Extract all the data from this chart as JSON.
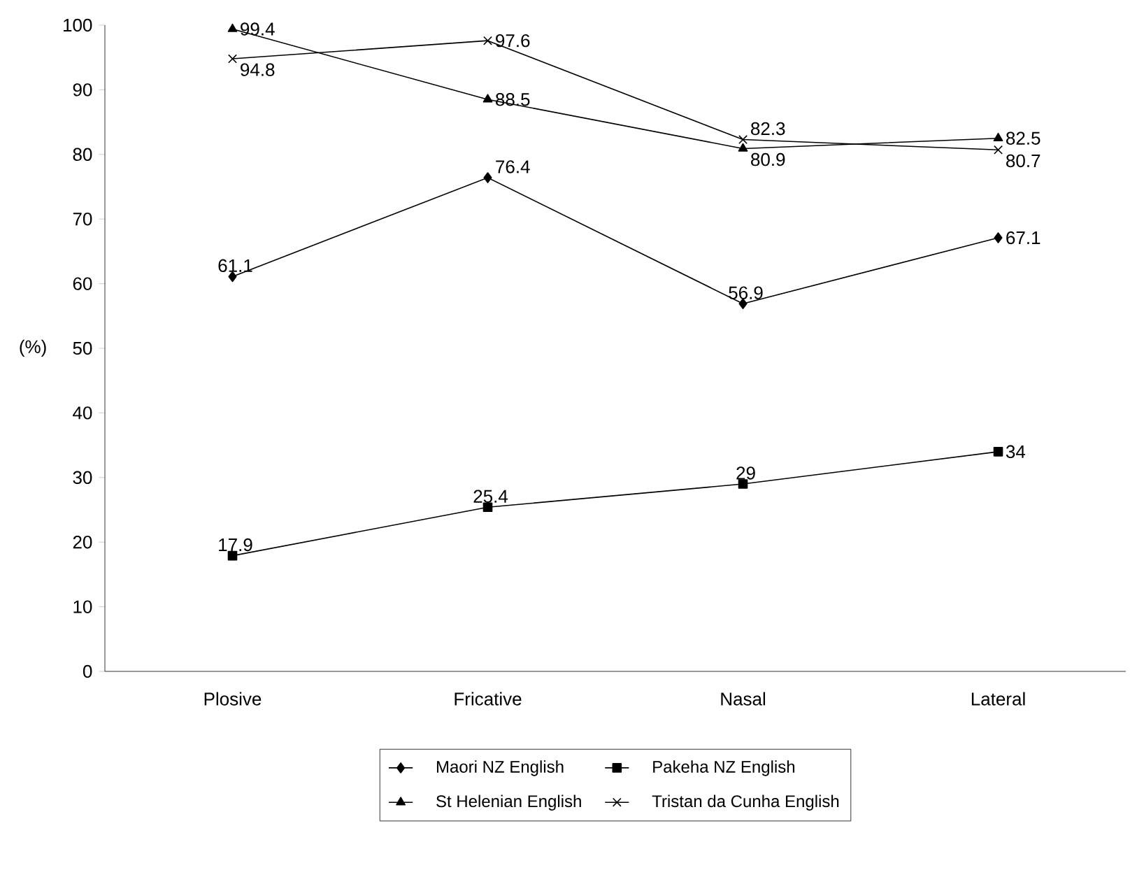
{
  "chart_data": {
    "type": "line",
    "ylabel": "(%)",
    "categories": [
      "Plosive",
      "Fricative",
      "Nasal",
      "Lateral"
    ],
    "ylim": [
      0,
      100
    ],
    "yticks": [
      0,
      10,
      20,
      30,
      40,
      50,
      60,
      70,
      80,
      90,
      100
    ],
    "grid": false,
    "legend": "bottom",
    "line_style": "solid",
    "series": [
      {
        "name": "Maori NZ English",
        "color": "#000000",
        "marker": "diamond",
        "values": [
          61.1,
          76.4,
          56.9,
          67.1
        ],
        "value_labels": [
          "61.1",
          "76.4",
          "56.9",
          "67.1"
        ]
      },
      {
        "name": "Pakeha NZ English",
        "color": "#000000",
        "marker": "square",
        "values": [
          17.9,
          25.4,
          29,
          34
        ],
        "value_labels": [
          "17.9",
          "25.4",
          "29",
          "34"
        ]
      },
      {
        "name": "St Helenian English",
        "color": "#000000",
        "marker": "triangle",
        "values": [
          99.4,
          88.5,
          80.9,
          82.5
        ],
        "value_labels": [
          "99.4",
          "88.5",
          "80.9",
          "82.5"
        ]
      },
      {
        "name": "Tristan da Cunha English",
        "color": "#000000",
        "marker": "cross",
        "values": [
          94.8,
          97.6,
          82.3,
          80.7
        ],
        "value_labels": [
          "94.8",
          "97.6",
          "82.3",
          "80.7"
        ]
      }
    ]
  }
}
